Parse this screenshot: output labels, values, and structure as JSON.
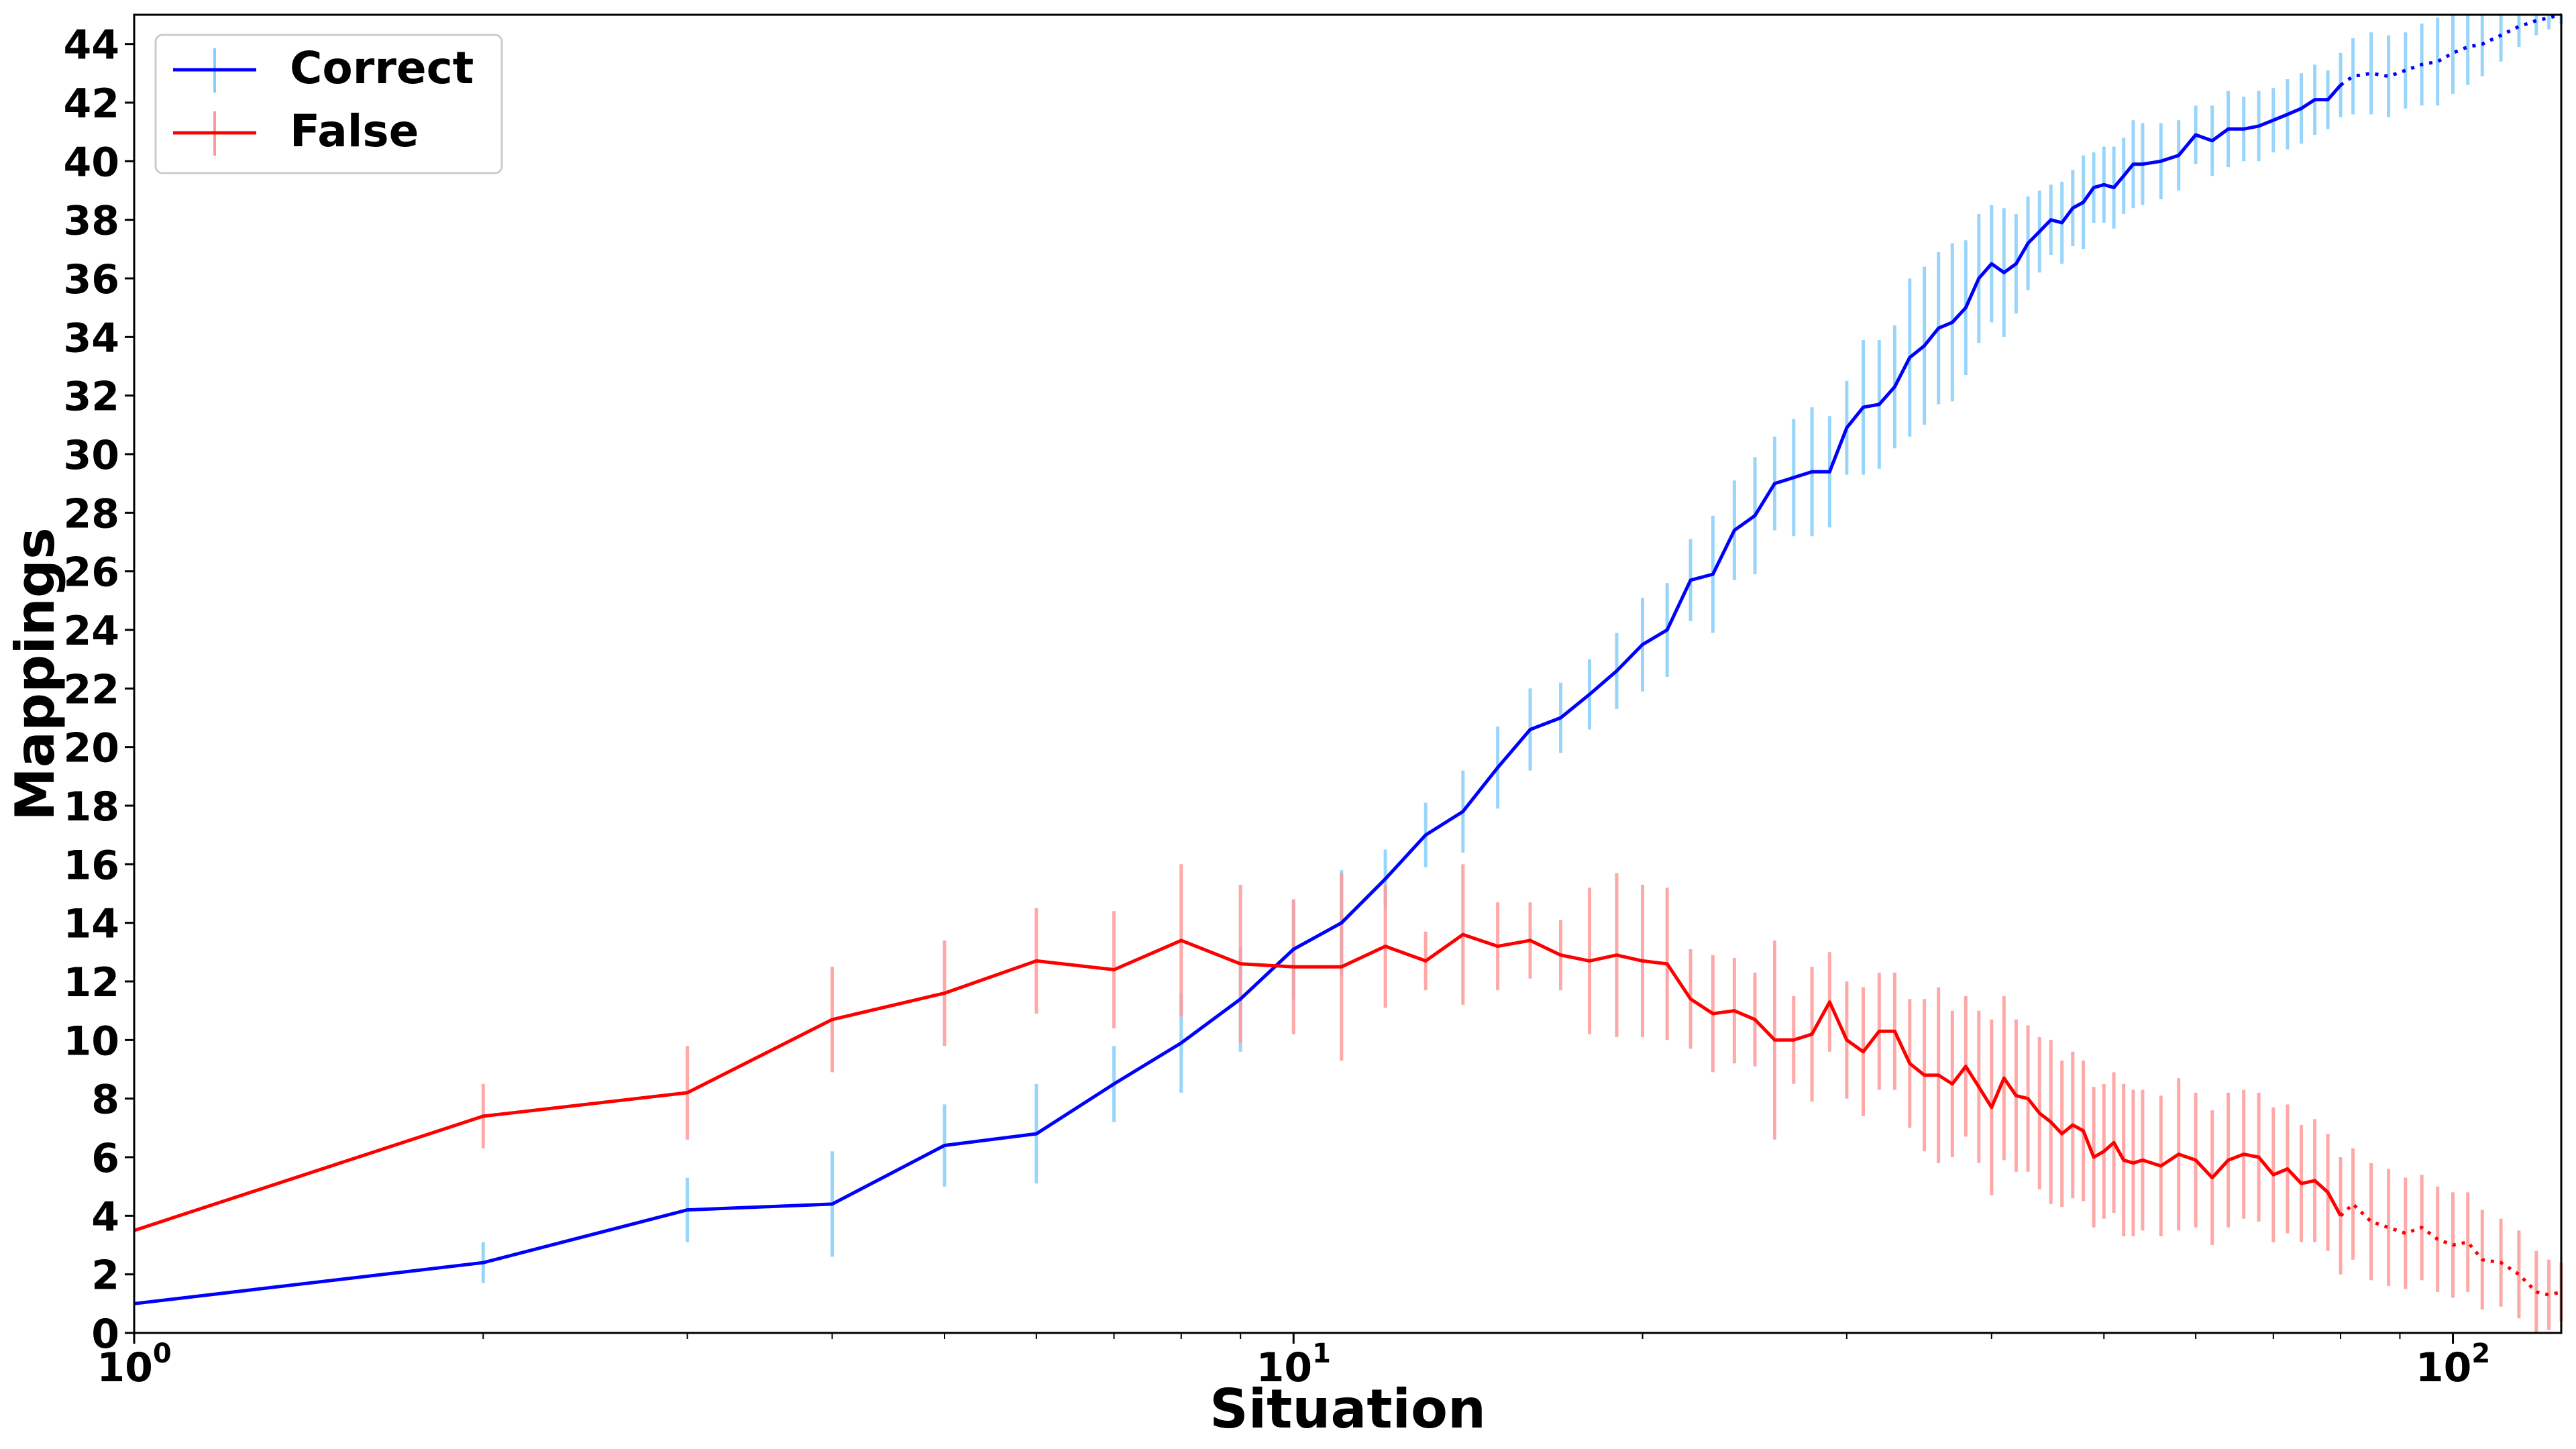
{
  "chart_data": {
    "type": "line",
    "xlabel": "Situation",
    "ylabel": "Mappings",
    "xscale": "log",
    "xlim": [
      1,
      124
    ],
    "ylim": [
      0,
      45
    ],
    "x_tick_labels": [
      "10^0",
      "10^1",
      "10^2"
    ],
    "y_ticks": [
      0,
      2,
      4,
      6,
      8,
      10,
      12,
      14,
      16,
      18,
      20,
      22,
      24,
      26,
      28,
      30,
      32,
      34,
      36,
      38,
      40,
      42,
      44
    ],
    "grid": false,
    "legend_position": "upper-left",
    "series": [
      {
        "name": "Correct",
        "color": "#0000ff",
        "error_color": "#87cefa",
        "points": [
          [
            1,
            1.0,
            0
          ],
          [
            2,
            2.4,
            0.7
          ],
          [
            3,
            4.2,
            1.1
          ],
          [
            4,
            4.4,
            1.8
          ],
          [
            5,
            6.4,
            1.4
          ],
          [
            6,
            6.8,
            1.7
          ],
          [
            7,
            8.5,
            1.3
          ],
          [
            8,
            9.9,
            1.7
          ],
          [
            9,
            11.4,
            1.8
          ],
          [
            10,
            13.1,
            1.7
          ],
          [
            11,
            14.0,
            1.8
          ],
          [
            12,
            15.5,
            1.0
          ],
          [
            13,
            17.0,
            1.1
          ],
          [
            14,
            17.8,
            1.4
          ],
          [
            15,
            19.3,
            1.4
          ],
          [
            16,
            20.6,
            1.4
          ],
          [
            17,
            21.0,
            1.2
          ],
          [
            18,
            21.8,
            1.2
          ],
          [
            19,
            22.6,
            1.3
          ],
          [
            20,
            23.5,
            1.6
          ],
          [
            21,
            24.0,
            1.6
          ],
          [
            22,
            25.7,
            1.4
          ],
          [
            23,
            25.9,
            2.0
          ],
          [
            24,
            27.4,
            1.7
          ],
          [
            25,
            27.9,
            2.0
          ],
          [
            26,
            29.0,
            1.6
          ],
          [
            27,
            29.2,
            2.0
          ],
          [
            28,
            29.4,
            2.2
          ],
          [
            29,
            29.4,
            1.9
          ],
          [
            30,
            30.9,
            1.6
          ],
          [
            31,
            31.6,
            2.3
          ],
          [
            32,
            31.7,
            2.2
          ],
          [
            33,
            32.3,
            2.1
          ],
          [
            34,
            33.3,
            2.7
          ],
          [
            35,
            33.7,
            2.7
          ],
          [
            36,
            34.3,
            2.6
          ],
          [
            37,
            34.5,
            2.7
          ],
          [
            38,
            35.0,
            2.3
          ],
          [
            39,
            36.0,
            2.2
          ],
          [
            40,
            36.5,
            2.0
          ],
          [
            41,
            36.2,
            2.2
          ],
          [
            42,
            36.5,
            1.7
          ],
          [
            43,
            37.2,
            1.6
          ],
          [
            44,
            37.6,
            1.4
          ],
          [
            45,
            38.0,
            1.2
          ],
          [
            46,
            37.9,
            1.4
          ],
          [
            47,
            38.4,
            1.3
          ],
          [
            48,
            38.6,
            1.6
          ],
          [
            49,
            39.1,
            1.2
          ],
          [
            50,
            39.2,
            1.3
          ],
          [
            51,
            39.1,
            1.4
          ],
          [
            52,
            39.5,
            1.3
          ],
          [
            53,
            39.9,
            1.5
          ],
          [
            54,
            39.9,
            1.4
          ],
          [
            56,
            40.0,
            1.3
          ],
          [
            58,
            40.2,
            1.2
          ],
          [
            60,
            40.9,
            1.0
          ],
          [
            62,
            40.7,
            1.2
          ],
          [
            64,
            41.1,
            1.3
          ],
          [
            66,
            41.1,
            1.1
          ],
          [
            68,
            41.2,
            1.2
          ],
          [
            70,
            41.4,
            1.1
          ],
          [
            72,
            41.6,
            1.2
          ],
          [
            74,
            41.8,
            1.2
          ],
          [
            76,
            42.1,
            1.2
          ],
          [
            78,
            42.1,
            1.0
          ],
          [
            80,
            42.6,
            1.1
          ],
          [
            82,
            42.9,
            1.3
          ],
          [
            85,
            43.0,
            1.4
          ],
          [
            88,
            42.9,
            1.4
          ],
          [
            91,
            43.1,
            1.3
          ],
          [
            94,
            43.3,
            1.4
          ],
          [
            97,
            43.4,
            1.5
          ],
          [
            100,
            43.7,
            1.4
          ],
          [
            103,
            43.9,
            1.3
          ],
          [
            106,
            44.0,
            1.1
          ],
          [
            110,
            44.3,
            0.9
          ],
          [
            114,
            44.6,
            0.7
          ],
          [
            118,
            44.8,
            0.5
          ],
          [
            121,
            44.9,
            0.4
          ],
          [
            124,
            45.0,
            0.3
          ]
        ]
      },
      {
        "name": "False",
        "color": "#ff0000",
        "error_color": "#ff9999",
        "points": [
          [
            1,
            3.5,
            0
          ],
          [
            2,
            7.4,
            1.1
          ],
          [
            3,
            8.2,
            1.6
          ],
          [
            4,
            10.7,
            1.8
          ],
          [
            5,
            11.6,
            1.8
          ],
          [
            6,
            12.7,
            1.8
          ],
          [
            7,
            12.4,
            2.0
          ],
          [
            8,
            13.4,
            2.6
          ],
          [
            9,
            12.6,
            2.7
          ],
          [
            10,
            12.5,
            2.3
          ],
          [
            11,
            12.5,
            3.2
          ],
          [
            12,
            13.2,
            2.1
          ],
          [
            13,
            12.7,
            1.0
          ],
          [
            14,
            13.6,
            2.4
          ],
          [
            15,
            13.2,
            1.5
          ],
          [
            16,
            13.4,
            1.3
          ],
          [
            17,
            12.9,
            1.2
          ],
          [
            18,
            12.7,
            2.5
          ],
          [
            19,
            12.9,
            2.8
          ],
          [
            20,
            12.7,
            2.6
          ],
          [
            21,
            12.6,
            2.6
          ],
          [
            22,
            11.4,
            1.7
          ],
          [
            23,
            10.9,
            2.0
          ],
          [
            24,
            11.0,
            1.8
          ],
          [
            25,
            10.7,
            1.6
          ],
          [
            26,
            10.0,
            3.4
          ],
          [
            27,
            10.0,
            1.5
          ],
          [
            28,
            10.2,
            2.3
          ],
          [
            29,
            11.3,
            1.7
          ],
          [
            30,
            10.0,
            2.0
          ],
          [
            31,
            9.6,
            2.2
          ],
          [
            32,
            10.3,
            2.0
          ],
          [
            33,
            10.3,
            2.0
          ],
          [
            34,
            9.2,
            2.2
          ],
          [
            35,
            8.8,
            2.6
          ],
          [
            36,
            8.8,
            3.0
          ],
          [
            37,
            8.5,
            2.5
          ],
          [
            38,
            9.1,
            2.4
          ],
          [
            39,
            8.4,
            2.6
          ],
          [
            40,
            7.7,
            3.0
          ],
          [
            41,
            8.7,
            2.8
          ],
          [
            42,
            8.1,
            2.6
          ],
          [
            43,
            8.0,
            2.5
          ],
          [
            44,
            7.5,
            2.6
          ],
          [
            45,
            7.2,
            2.8
          ],
          [
            46,
            6.8,
            2.5
          ],
          [
            47,
            7.1,
            2.5
          ],
          [
            48,
            6.9,
            2.4
          ],
          [
            49,
            6.0,
            2.4
          ],
          [
            50,
            6.2,
            2.3
          ],
          [
            51,
            6.5,
            2.4
          ],
          [
            52,
            5.9,
            2.6
          ],
          [
            53,
            5.8,
            2.5
          ],
          [
            54,
            5.9,
            2.4
          ],
          [
            56,
            5.7,
            2.4
          ],
          [
            58,
            6.1,
            2.6
          ],
          [
            60,
            5.9,
            2.3
          ],
          [
            62,
            5.3,
            2.3
          ],
          [
            64,
            5.9,
            2.3
          ],
          [
            66,
            6.1,
            2.2
          ],
          [
            68,
            6.0,
            2.2
          ],
          [
            70,
            5.4,
            2.3
          ],
          [
            72,
            5.6,
            2.2
          ],
          [
            74,
            5.1,
            2.0
          ],
          [
            76,
            5.2,
            2.1
          ],
          [
            78,
            4.8,
            2.0
          ],
          [
            80,
            4.0,
            2.0
          ],
          [
            82,
            4.4,
            1.9
          ],
          [
            85,
            3.8,
            2.0
          ],
          [
            88,
            3.6,
            2.0
          ],
          [
            91,
            3.4,
            1.9
          ],
          [
            94,
            3.6,
            1.8
          ],
          [
            97,
            3.2,
            1.8
          ],
          [
            100,
            3.0,
            1.8
          ],
          [
            103,
            3.1,
            1.7
          ],
          [
            106,
            2.5,
            1.7
          ],
          [
            110,
            2.4,
            1.5
          ],
          [
            114,
            2.0,
            1.5
          ],
          [
            118,
            1.4,
            1.4
          ],
          [
            121,
            1.3,
            1.2
          ],
          [
            124,
            1.4,
            1.0
          ]
        ]
      }
    ]
  }
}
